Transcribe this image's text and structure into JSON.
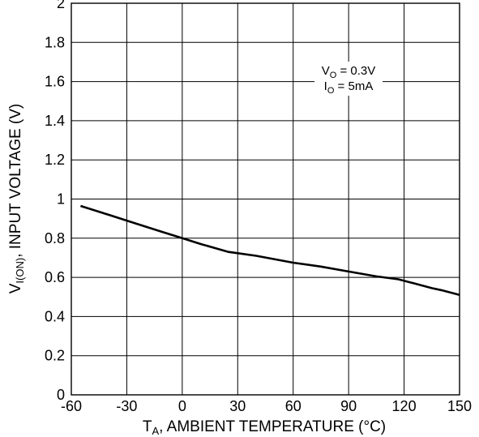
{
  "chart_data": {
    "type": "line",
    "xlabel": {
      "main": "T",
      "sub": "A",
      "rest": ", AMBIENT TEMPERATURE (°C)"
    },
    "ylabel": {
      "main": "V",
      "sub": "I(ON)",
      "rest": ", INPUT VOLTAGE (V)"
    },
    "xlim": [
      -60,
      150
    ],
    "ylim": [
      0,
      2
    ],
    "xticks": [
      -60,
      -30,
      0,
      30,
      60,
      90,
      120,
      150
    ],
    "xtick_labels": [
      "-60",
      "-30",
      "0",
      "30",
      "60",
      "90",
      "120",
      "150"
    ],
    "yticks": [
      0,
      0.2,
      0.4,
      0.6,
      0.8,
      1,
      1.2,
      1.4,
      1.6,
      1.8,
      2
    ],
    "ytick_labels": [
      "0",
      "0.2",
      "0.4",
      "0.6",
      "0.8",
      "1",
      "1.2",
      "1.4",
      "1.6",
      "1.8",
      "2"
    ],
    "grid": true,
    "annotations": [
      {
        "main": "V",
        "sub": "O",
        "rest": " = 0.3V"
      },
      {
        "main": "I",
        "sub": "O",
        "rest": " = 5mA"
      }
    ],
    "series": [
      {
        "x": [
          -55,
          -40,
          -25,
          -10,
          0,
          10,
          25,
          40,
          60,
          75,
          90,
          105,
          117,
          125,
          135,
          140,
          150
        ],
        "y": [
          0.965,
          0.92,
          0.875,
          0.83,
          0.8,
          0.77,
          0.73,
          0.71,
          0.675,
          0.655,
          0.63,
          0.605,
          0.59,
          0.57,
          0.545,
          0.535,
          0.51
        ]
      }
    ]
  }
}
